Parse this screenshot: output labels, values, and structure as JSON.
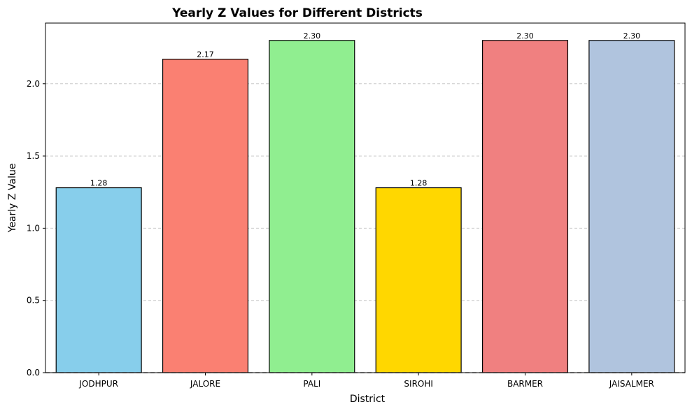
{
  "chart_data": {
    "type": "bar",
    "title": "Yearly Z Values for Different Districts",
    "xlabel": "District",
    "ylabel": "Yearly Z Value",
    "categories": [
      "JODHPUR",
      "JALORE",
      "PALI",
      "SIROHI",
      "BARMER",
      "JAISALMER"
    ],
    "values": [
      1.28,
      2.17,
      2.3,
      1.28,
      2.3,
      2.3
    ],
    "data_labels": [
      "1.28",
      "2.17",
      "2.30",
      "1.28",
      "2.30",
      "2.30"
    ],
    "bar_colors": [
      "#87ceeb",
      "#fa8072",
      "#90ee90",
      "#ffd700",
      "#f08080",
      "#b0c4de"
    ],
    "bar_edge_color": "#000000",
    "ylim": [
      0,
      2.42
    ],
    "yticks": [
      0.0,
      0.5,
      1.0,
      1.5,
      2.0
    ],
    "ytick_labels": [
      "0.0",
      "0.5",
      "1.0",
      "1.5",
      "2.0"
    ],
    "grid": "y-dashed",
    "baseline_dashed_at": 0
  }
}
